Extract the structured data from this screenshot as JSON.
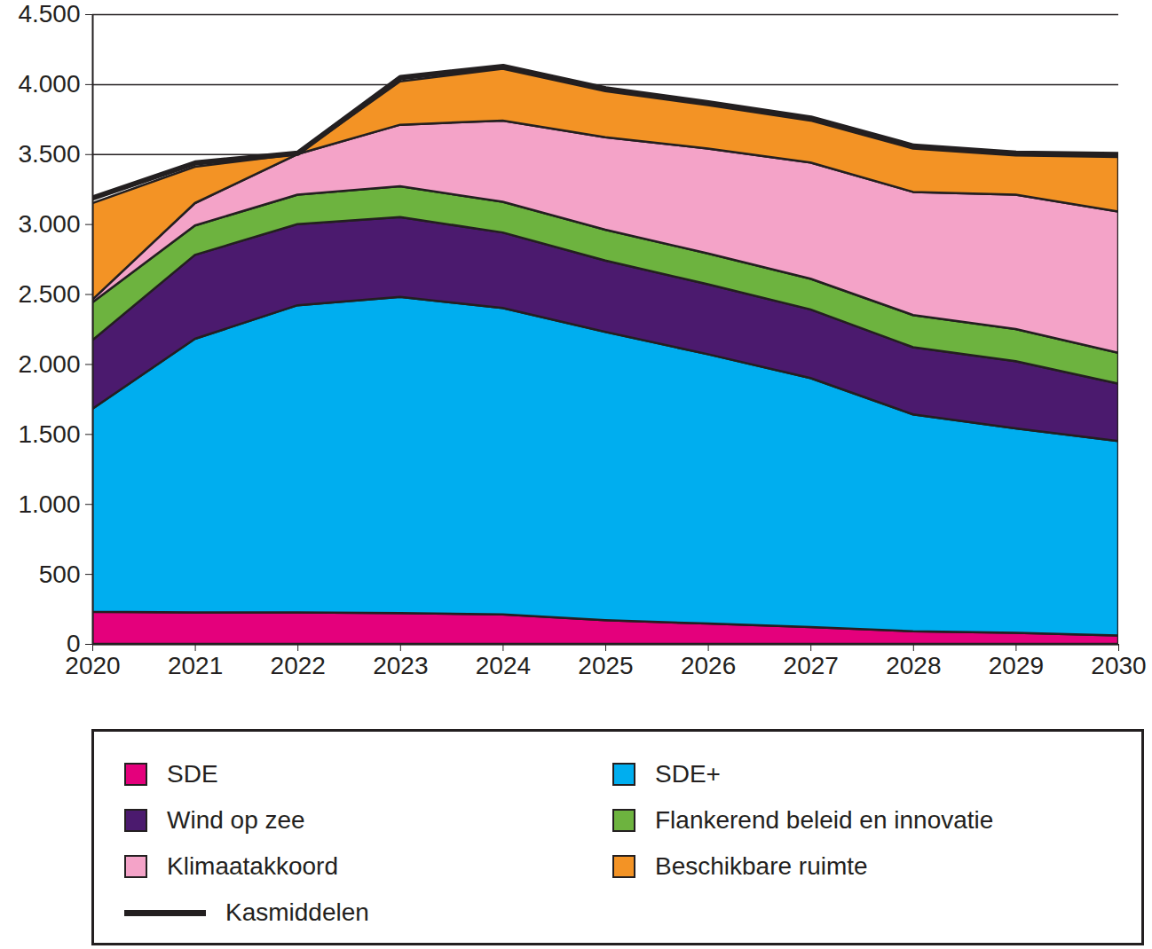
{
  "chart_data": {
    "type": "area",
    "stacked": true,
    "grid": true,
    "legend": "bottom",
    "x": [
      2020,
      2021,
      2022,
      2023,
      2024,
      2025,
      2026,
      2027,
      2028,
      2029,
      2030
    ],
    "xlim": [
      2020,
      2030
    ],
    "xticks": [
      2020,
      2021,
      2022,
      2023,
      2024,
      2025,
      2026,
      2027,
      2028,
      2029,
      2030
    ],
    "ylim": [
      0,
      4500
    ],
    "yticks": [
      0,
      500,
      {
        "value": 1000,
        "label": "1.000"
      },
      {
        "value": 1500,
        "label": "1.500"
      },
      {
        "value": 2000,
        "label": "2.000"
      },
      {
        "value": 2500,
        "label": "2.500"
      },
      {
        "value": 3000,
        "label": "3.000"
      },
      {
        "value": 3500,
        "label": "3.500"
      },
      {
        "value": 4000,
        "label": "4.000"
      },
      {
        "value": 4500,
        "label": "4.500"
      }
    ],
    "series": [
      {
        "name": "SDE",
        "color": "#e4007c",
        "values": [
          230,
          225,
          225,
          220,
          210,
          170,
          145,
          120,
          90,
          80,
          60
        ]
      },
      {
        "name": "SDE+",
        "color": "#00aeef",
        "values": [
          1450,
          1955,
          2195,
          2260,
          2190,
          2060,
          1925,
          1780,
          1550,
          1460,
          1390
        ]
      },
      {
        "name": "Wind op zee",
        "color": "#4b1a6e",
        "values": [
          490,
          600,
          580,
          570,
          540,
          510,
          500,
          490,
          480,
          480,
          410
        ]
      },
      {
        "name": "Flankerend beleid en innovatie",
        "color": "#6db33f",
        "values": [
          270,
          210,
          210,
          220,
          220,
          220,
          220,
          220,
          230,
          230,
          220
        ]
      },
      {
        "name": "Klimaatakkoord",
        "color": "#f4a3c8",
        "values": [
          20,
          160,
          290,
          440,
          580,
          660,
          750,
          830,
          880,
          960,
          1010
        ]
      },
      {
        "name": "Beschikbare ruimte",
        "color": "#f39325",
        "values": [
          690,
          260,
          0,
          310,
          370,
          330,
          310,
          300,
          310,
          280,
          390
        ]
      },
      {
        "name": "Kasmiddelen",
        "color": "#231f20",
        "type": "line",
        "stacked": false,
        "values": [
          3190,
          3440,
          3510,
          4050,
          4130,
          3970,
          3870,
          3760,
          3560,
          3510,
          3500
        ]
      }
    ]
  }
}
